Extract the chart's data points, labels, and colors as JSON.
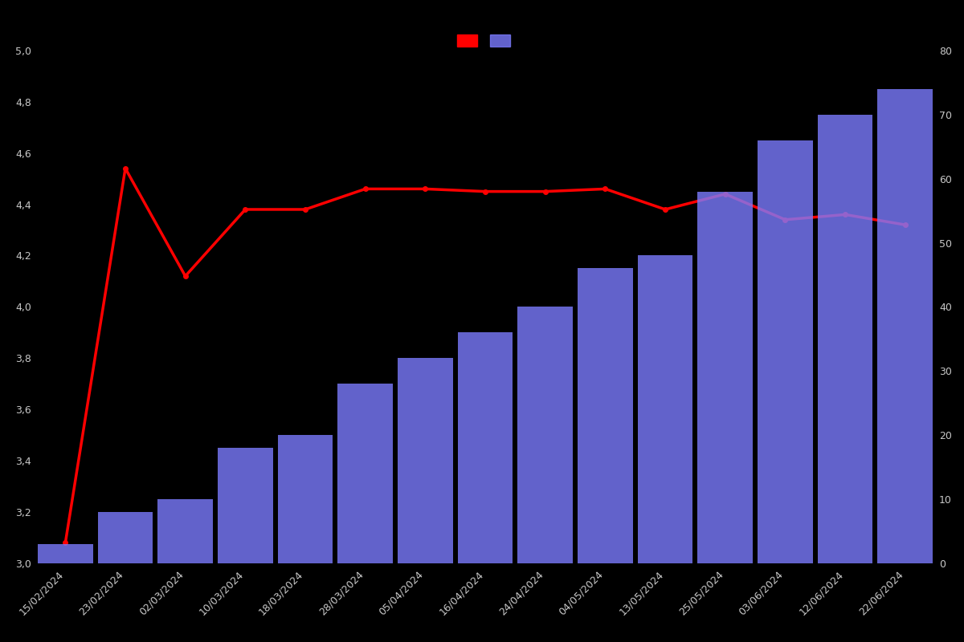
{
  "dates": [
    "15/02/2024",
    "23/02/2024",
    "02/03/2024",
    "10/03/2024",
    "18/03/2024",
    "28/03/2024",
    "05/04/2024",
    "16/04/2024",
    "24/04/2024",
    "04/05/2024",
    "13/05/2024",
    "25/05/2024",
    "03/06/2024",
    "12/06/2024",
    "22/06/2024"
  ],
  "bar_values": [
    3,
    8,
    10,
    18,
    20,
    28,
    32,
    36,
    40,
    46,
    48,
    58,
    66,
    70,
    74
  ],
  "line_values": [
    3.08,
    4.54,
    4.12,
    4.38,
    4.38,
    4.46,
    4.46,
    4.45,
    4.45,
    4.46,
    4.38,
    4.44,
    4.34,
    4.36,
    4.32
  ],
  "bar_color": "#7b7bff",
  "line_color": "#ff0000",
  "background_color": "#000000",
  "text_color": "#c8c8c8",
  "ylim_left": [
    3.0,
    5.0
  ],
  "ylim_right": [
    0,
    80
  ],
  "yticks_left": [
    3.0,
    3.2,
    3.4,
    3.6,
    3.8,
    4.0,
    4.2,
    4.4,
    4.6,
    4.8,
    5.0
  ],
  "yticks_right": [
    0,
    10,
    20,
    30,
    40,
    50,
    60,
    70,
    80
  ],
  "bar_alpha": 0.8,
  "line_width": 2.5,
  "marker": "o",
  "marker_size": 4
}
